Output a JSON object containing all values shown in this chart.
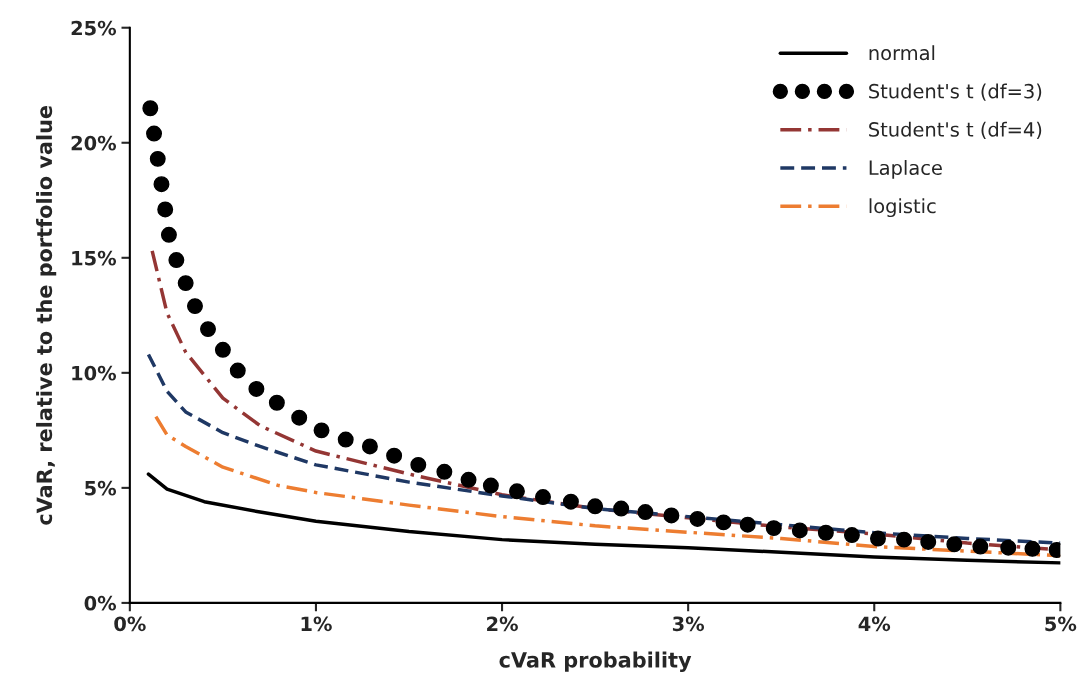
{
  "chart_data": {
    "type": "line",
    "xlabel": "cVaR probability",
    "ylabel": "cVaR, relative to the portfolio value",
    "xlim": [
      0,
      5
    ],
    "ylim": [
      0,
      25
    ],
    "xticks": [
      {
        "value": 0,
        "label": "0%"
      },
      {
        "value": 1,
        "label": "1%"
      },
      {
        "value": 2,
        "label": "2%"
      },
      {
        "value": 3,
        "label": "3%"
      },
      {
        "value": 4,
        "label": "4%"
      },
      {
        "value": 5,
        "label": "5%"
      }
    ],
    "yticks": [
      {
        "value": 0,
        "label": "0%"
      },
      {
        "value": 5,
        "label": "5%"
      },
      {
        "value": 10,
        "label": "10%"
      },
      {
        "value": 15,
        "label": "15%"
      },
      {
        "value": 20,
        "label": "20%"
      },
      {
        "value": 25,
        "label": "25%"
      }
    ],
    "grid": false,
    "legend": "top right",
    "series": [
      {
        "name": "normal",
        "color": "#000000",
        "line_style": "solid",
        "x": [
          0.1,
          0.2,
          0.4,
          0.7,
          1.0,
          1.5,
          2.0,
          2.5,
          3.0,
          3.5,
          4.0,
          4.5,
          5.0
        ],
        "values": [
          5.6,
          4.95,
          4.4,
          3.95,
          3.55,
          3.1,
          2.75,
          2.55,
          2.4,
          2.2,
          2.0,
          1.85,
          1.74
        ]
      },
      {
        "name": "Student's t (df=3)",
        "type": "scatter",
        "color": "#000000",
        "marker": "circle",
        "x": [
          0.11,
          0.13,
          0.15,
          0.17,
          0.19,
          0.21,
          0.25,
          0.3,
          0.35,
          0.42,
          0.5,
          0.58,
          0.68,
          0.79,
          0.91,
          1.03,
          1.16,
          1.29,
          1.42,
          1.55,
          1.69,
          1.82,
          1.94,
          2.08,
          2.22,
          2.37,
          2.5,
          2.64,
          2.77,
          2.91,
          3.05,
          3.19,
          3.32,
          3.46,
          3.6,
          3.74,
          3.88,
          4.02,
          4.16,
          4.29,
          4.43,
          4.57,
          4.72,
          4.85,
          4.98
        ],
        "values": [
          21.5,
          20.4,
          19.3,
          18.2,
          17.1,
          16.0,
          14.9,
          13.9,
          12.9,
          11.9,
          11.0,
          10.1,
          9.3,
          8.7,
          8.05,
          7.5,
          7.1,
          6.8,
          6.4,
          6.0,
          5.7,
          5.35,
          5.1,
          4.85,
          4.6,
          4.4,
          4.2,
          4.1,
          3.95,
          3.8,
          3.65,
          3.5,
          3.4,
          3.25,
          3.15,
          3.05,
          2.95,
          2.8,
          2.75,
          2.65,
          2.55,
          2.45,
          2.4,
          2.35,
          2.3
        ]
      },
      {
        "name": "Student's t (df=4)",
        "color": "#943634",
        "line_style": "dashdot",
        "x": [
          0.12,
          0.2,
          0.3,
          0.5,
          0.7,
          1.0,
          1.5,
          2.0,
          2.5,
          3.0,
          3.5,
          4.0,
          4.5,
          5.0
        ],
        "values": [
          15.3,
          12.6,
          10.9,
          8.9,
          7.7,
          6.6,
          5.6,
          4.7,
          4.1,
          3.7,
          3.3,
          3.0,
          2.6,
          2.3
        ]
      },
      {
        "name": "Laplace",
        "color": "#1f3864",
        "line_style": "dashed",
        "x": [
          0.1,
          0.2,
          0.3,
          0.5,
          0.7,
          1.0,
          1.5,
          2.0,
          2.5,
          3.0,
          3.5,
          4.0,
          4.5,
          5.0
        ],
        "values": [
          10.8,
          9.2,
          8.3,
          7.4,
          6.8,
          6.0,
          5.25,
          4.65,
          4.1,
          3.75,
          3.4,
          3.05,
          2.8,
          2.6
        ]
      },
      {
        "name": "logistic",
        "color": "#ed7d31",
        "line_style": "dashdot",
        "x": [
          0.14,
          0.2,
          0.3,
          0.5,
          0.8,
          1.0,
          1.5,
          2.0,
          2.5,
          3.0,
          3.5,
          4.0,
          4.5,
          5.0
        ],
        "values": [
          8.1,
          7.3,
          6.8,
          5.9,
          5.1,
          4.8,
          4.25,
          3.75,
          3.35,
          3.07,
          2.8,
          2.45,
          2.25,
          2.05
        ]
      }
    ]
  }
}
